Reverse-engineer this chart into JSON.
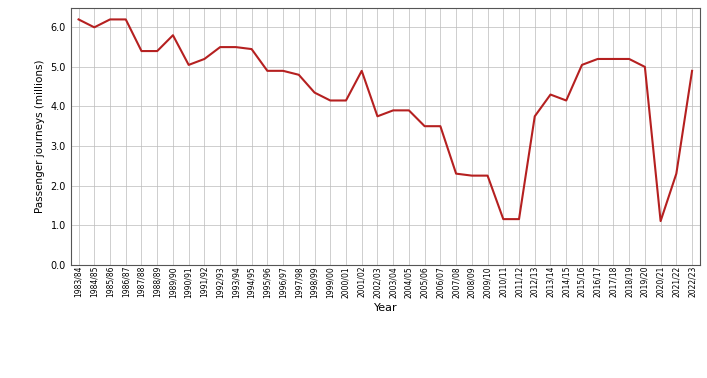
{
  "years": [
    "1983/84",
    "1984/85",
    "1985/86",
    "1986/87",
    "1987/88",
    "1988/89",
    "1989/90",
    "1990/91",
    "1991/92",
    "1992/93",
    "1993/94",
    "1994/95",
    "1995/96",
    "1996/97",
    "1997/98",
    "1998/99",
    "1999/00",
    "2000/01",
    "2001/02",
    "2002/03",
    "2003/04",
    "2004/05",
    "2005/06",
    "2006/07",
    "2007/08",
    "2008/09",
    "2009/10",
    "2010/11",
    "2011/12",
    "2012/13",
    "2013/14",
    "2014/15",
    "2015/16",
    "2016/17",
    "2017/18",
    "2018/19",
    "2019/20",
    "2020/21",
    "2021/22",
    "2022/23"
  ],
  "values": [
    6.2,
    6.0,
    6.2,
    6.2,
    5.4,
    5.4,
    5.8,
    5.05,
    5.2,
    5.5,
    5.5,
    5.45,
    4.9,
    4.9,
    4.8,
    4.35,
    4.15,
    4.15,
    4.9,
    3.75,
    3.9,
    3.9,
    3.5,
    3.5,
    2.3,
    2.25,
    2.25,
    1.15,
    1.15,
    3.75,
    4.3,
    4.15,
    5.05,
    5.2,
    5.2,
    5.2,
    5.0,
    1.1,
    2.3,
    4.9
  ],
  "line_color": "#b52020",
  "line_width": 1.5,
  "ylabel": "Passenger journeys (millions)",
  "xlabel": "Year",
  "ylim": [
    0.0,
    6.5
  ],
  "yticks": [
    0.0,
    1.0,
    2.0,
    3.0,
    4.0,
    5.0,
    6.0
  ],
  "background_color": "#ffffff",
  "grid_color": "#bbbbbb"
}
